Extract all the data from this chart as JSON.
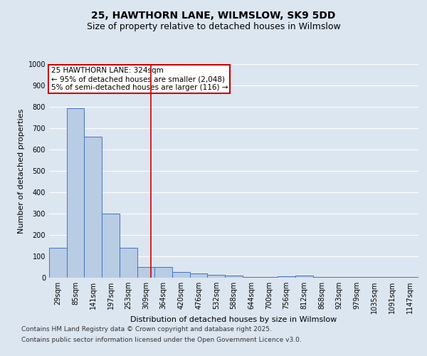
{
  "title_line1": "25, HAWTHORN LANE, WILMSLOW, SK9 5DD",
  "title_line2": "Size of property relative to detached houses in Wilmslow",
  "xlabel": "Distribution of detached houses by size in Wilmslow",
  "ylabel": "Number of detached properties",
  "categories": [
    "29sqm",
    "85sqm",
    "141sqm",
    "197sqm",
    "253sqm",
    "309sqm",
    "364sqm",
    "420sqm",
    "476sqm",
    "532sqm",
    "588sqm",
    "644sqm",
    "700sqm",
    "756sqm",
    "812sqm",
    "868sqm",
    "923sqm",
    "979sqm",
    "1035sqm",
    "1091sqm",
    "1147sqm"
  ],
  "values": [
    140,
    795,
    660,
    300,
    140,
    50,
    50,
    27,
    20,
    15,
    10,
    5,
    2,
    6,
    10,
    5,
    2,
    5,
    2,
    5,
    2
  ],
  "bar_color": "#b8cce4",
  "bar_edge_color": "#4472c4",
  "background_color": "#dce6f1",
  "plot_bg_color": "#dce6f1",
  "grid_color": "#ffffff",
  "annotation_text_line1": "25 HAWTHORN LANE: 324sqm",
  "annotation_text_line2": "← 95% of detached houses are smaller (2,048)",
  "annotation_text_line3": "5% of semi-detached houses are larger (116) →",
  "annotation_box_facecolor": "#ffffff",
  "annotation_box_edgecolor": "#cc0000",
  "vline_color": "#cc0000",
  "vline_x": 5.3,
  "ylim": [
    0,
    1000
  ],
  "yticks": [
    0,
    100,
    200,
    300,
    400,
    500,
    600,
    700,
    800,
    900,
    1000
  ],
  "footer_line1": "Contains HM Land Registry data © Crown copyright and database right 2025.",
  "footer_line2": "Contains public sector information licensed under the Open Government Licence v3.0.",
  "title_fontsize": 10,
  "subtitle_fontsize": 9,
  "axis_label_fontsize": 8,
  "tick_fontsize": 7,
  "annotation_fontsize": 7.5,
  "footer_fontsize": 6.5
}
